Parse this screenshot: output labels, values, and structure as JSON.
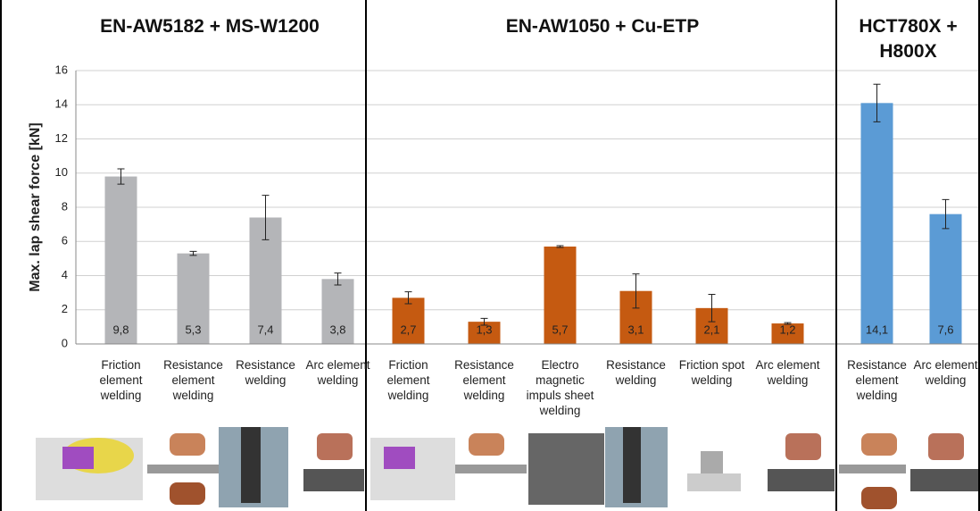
{
  "chart_data": [
    {
      "type": "bar",
      "title": "EN-AW5182 + MS-W1200",
      "ylabel": "Max. lap shear force [kN]",
      "categories": [
        "Friction element welding",
        "Resistance element welding",
        "Resistance welding",
        "Arc element welding"
      ],
      "values": [
        9.8,
        5.3,
        7.4,
        3.8
      ],
      "value_labels": [
        "9,8",
        "5,3",
        "7,4",
        "3,8"
      ],
      "errors": [
        0.45,
        0.12,
        1.3,
        0.35
      ],
      "color": "#b4b5b8",
      "ylim": [
        0,
        16
      ],
      "yticks": [
        0,
        2,
        4,
        6,
        8,
        10,
        12,
        14,
        16
      ],
      "grid": true
    },
    {
      "type": "bar",
      "title": "EN-AW1050 + Cu-ETP",
      "categories": [
        "Friction element welding",
        "Resistance element welding",
        "Electro magnetic impuls sheet welding",
        "Resistance welding",
        "Friction spot welding",
        "Arc element welding"
      ],
      "values": [
        2.7,
        1.3,
        5.7,
        3.1,
        2.1,
        1.2
      ],
      "value_labels": [
        "2,7",
        "1,3",
        "5,7",
        "3,1",
        "2,1",
        "1,2"
      ],
      "errors": [
        0.35,
        0.2,
        0.05,
        1.0,
        0.8,
        0.05
      ],
      "color": "#c55a11",
      "ylim": [
        0,
        16
      ]
    },
    {
      "type": "bar",
      "title": "HCT780X + H800X",
      "categories": [
        "Resistance element welding",
        "Arc element welding"
      ],
      "values": [
        14.1,
        7.6
      ],
      "value_labels": [
        "14,1",
        "7,6"
      ],
      "errors": [
        1.1,
        0.85
      ],
      "color": "#5b9bd5",
      "ylim": [
        0,
        16
      ]
    }
  ]
}
